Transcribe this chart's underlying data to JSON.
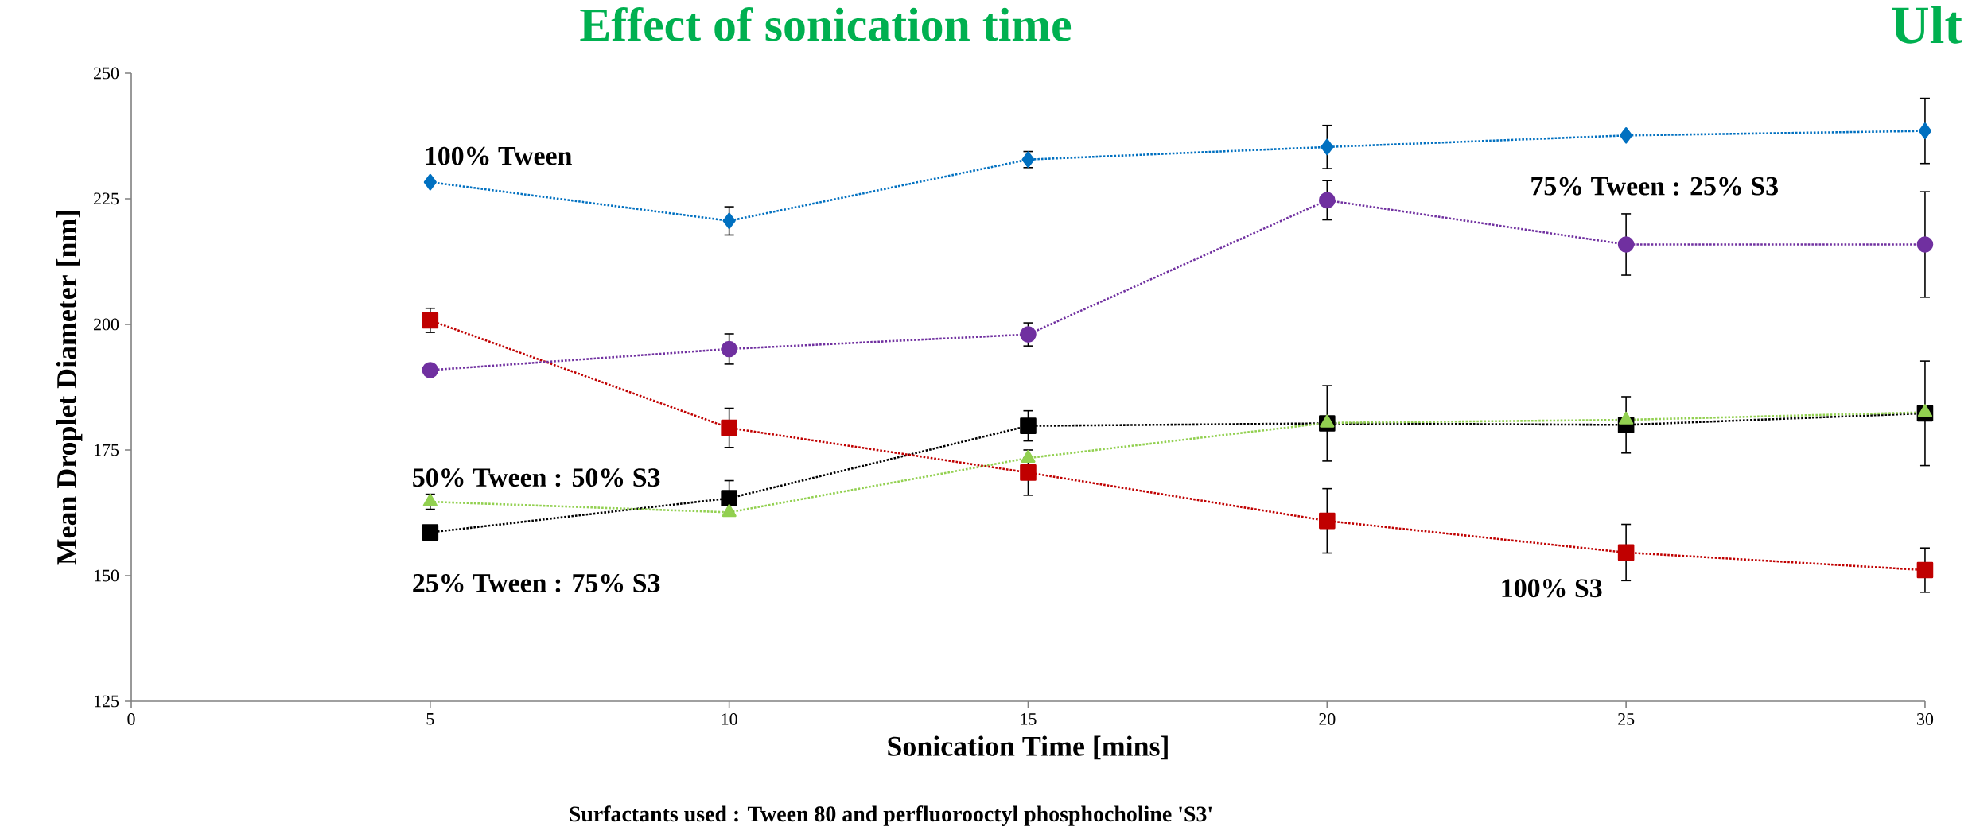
{
  "chart_data": {
    "type": "line",
    "title": "Effect of sonication time",
    "xlabel": "Sonication Time [mins]",
    "ylabel": "Mean Droplet Diameter [nm]",
    "annotations": [
      "Surfactants used : Tween 80 and perfluorooctyl phosphocholine 'S3'",
      "Ult"
    ],
    "x": [
      5,
      10,
      15,
      20,
      25,
      30
    ],
    "series": [
      {
        "name": "100% Tween",
        "color": "#0070c0",
        "marker": "diamond",
        "values": [
          228.3,
          220.6,
          232.8,
          235.3,
          237.6,
          238.5
        ],
        "errors": [
          null,
          2.8,
          1.6,
          4.3,
          null,
          6.5
        ]
      },
      {
        "name": "75% Tween : 25% S3",
        "color": "#7030a0",
        "marker": "circle",
        "values": [
          190.9,
          195.1,
          198.0,
          224.7,
          215.9,
          215.9
        ],
        "errors": [
          null,
          3,
          2.3,
          3.9,
          6.1,
          10.5
        ]
      },
      {
        "name": "100% S3",
        "color": "#c00000",
        "marker": "square",
        "values": [
          200.8,
          179.4,
          170.5,
          160.9,
          154.6,
          151.1
        ],
        "errors": [
          2.4,
          3.9,
          4.5,
          6.4,
          5.6,
          4.4
        ]
      },
      {
        "name": "50% Tween : 50% S3",
        "color": "#92d050",
        "marker": "triangle",
        "values": [
          164.7,
          162.6,
          173.4,
          180.4,
          181.0,
          182.5
        ],
        "errors": [
          1.5,
          null,
          null,
          null,
          null,
          null
        ]
      },
      {
        "name": "25% Tween : 75% S3",
        "color": "#000000",
        "marker": "square",
        "values": [
          158.6,
          165.4,
          179.8,
          180.3,
          180.0,
          182.3
        ],
        "errors": [
          null,
          3.5,
          3,
          7.5,
          5.6,
          10.4
        ]
      }
    ],
    "xlim": [
      0,
      30
    ],
    "xticks": [
      0,
      5,
      10,
      15,
      20,
      25,
      30
    ],
    "ylim": [
      125,
      250
    ],
    "yticks": [
      125,
      150,
      175,
      200,
      225,
      250
    ],
    "grid": false,
    "legend": false,
    "line_style": "dotted"
  }
}
